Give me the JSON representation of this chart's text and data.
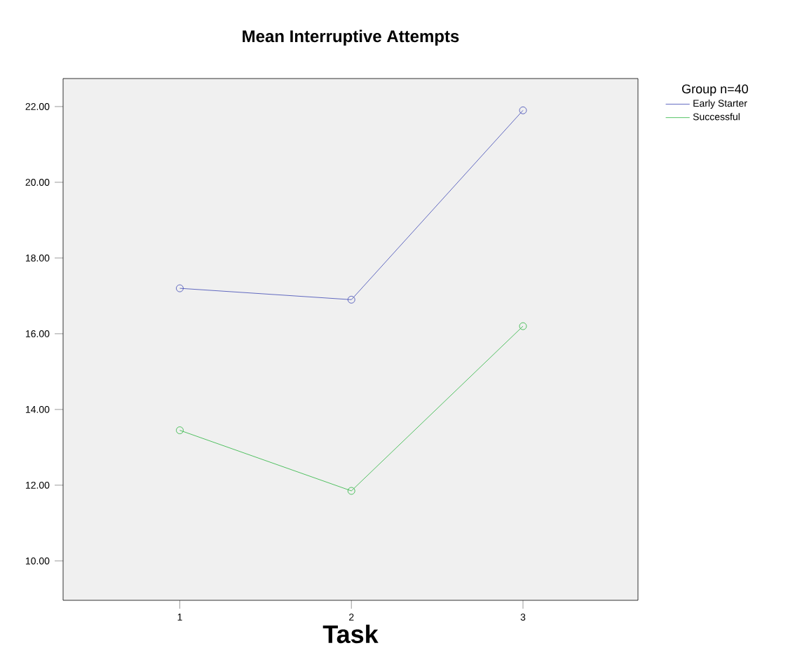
{
  "chart_data": {
    "type": "line",
    "title": "Mean Interruptive Attempts",
    "xlabel": "Task",
    "legend_title": "Group n=40",
    "x": [
      1,
      2,
      3
    ],
    "xlim": [
      0.32,
      3.67
    ],
    "xticks": [
      1,
      2,
      3
    ],
    "ylim": [
      8.96,
      22.74
    ],
    "yticks": [
      {
        "value": 10,
        "label": "10.00"
      },
      {
        "value": 12,
        "label": "12.00"
      },
      {
        "value": 14,
        "label": "14.00"
      },
      {
        "value": 16,
        "label": "16.00"
      },
      {
        "value": 18,
        "label": "18.00"
      },
      {
        "value": 20,
        "label": "20.00"
      },
      {
        "value": 22,
        "label": "22.00"
      }
    ],
    "series": [
      {
        "name": "Early Starter",
        "color": "#3c46b4",
        "values": [
          17.2,
          16.9,
          21.9
        ]
      },
      {
        "name": "Successful",
        "color": "#28b43c",
        "values": [
          13.45,
          11.85,
          16.2
        ]
      }
    ],
    "marker": "circle",
    "line_style": "solid",
    "legend": "top right",
    "grid": false
  }
}
